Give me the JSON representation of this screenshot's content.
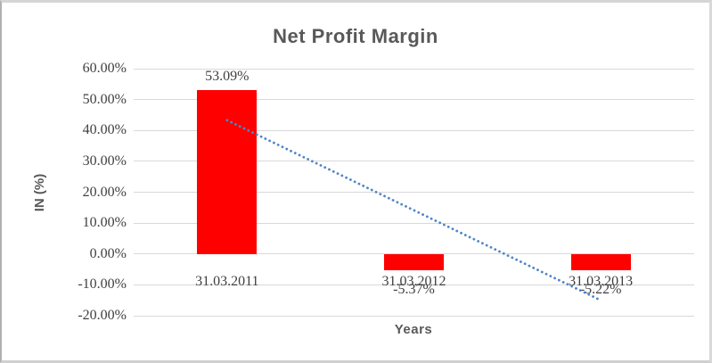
{
  "chart_data": {
    "type": "bar",
    "title": "Net Profit Margin",
    "xlabel": "Years",
    "ylabel": "IN (%)",
    "categories": [
      "31.03.2011",
      "31.03.2012",
      "31.03.2013"
    ],
    "values": [
      53.09,
      -5.37,
      -5.22
    ],
    "data_labels": [
      "53.09%",
      "-5.37%",
      "-5.22%"
    ],
    "ylim": [
      -20,
      60
    ],
    "y_tick_step": 10,
    "y_tick_labels": [
      "60.00%",
      "50.00%",
      "40.00%",
      "30.00%",
      "20.00%",
      "10.00%",
      "0.00%",
      "-10.00%",
      "-20.00%"
    ],
    "grid": true,
    "legend_position": "none",
    "bar_color": "#ff0000",
    "gridline_color": "#d9d9d9",
    "title_color": "#595959",
    "label_color": "#3f3f3f",
    "trendline": {
      "style": "dotted",
      "color": "#4f86c6",
      "start_value": 43.3,
      "end_value": -15.0
    }
  }
}
